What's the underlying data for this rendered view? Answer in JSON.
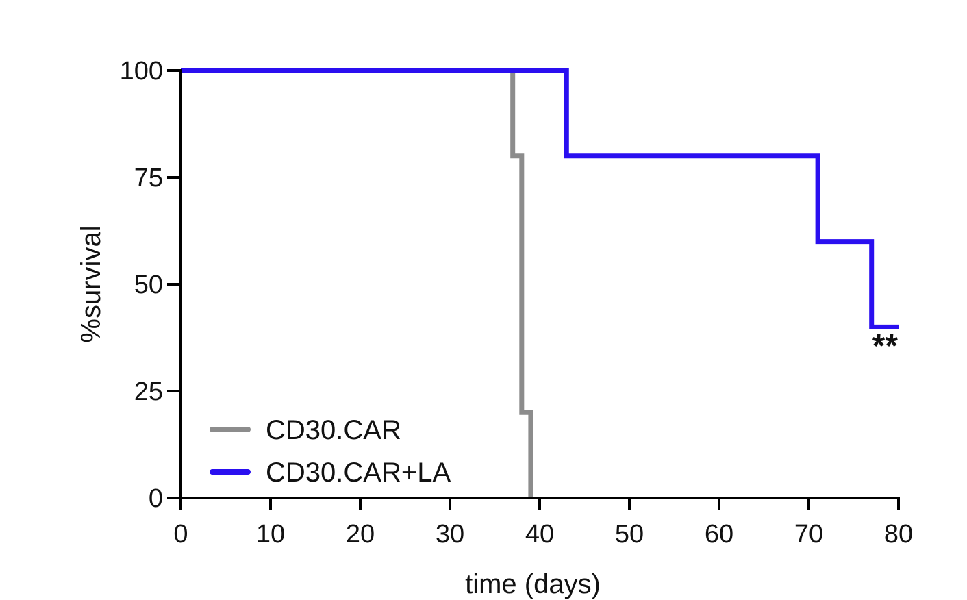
{
  "chart_data": {
    "type": "line",
    "step": true,
    "title": "",
    "xlabel": "time (days)",
    "ylabel": "%survival",
    "xlim": [
      0,
      80
    ],
    "ylim": [
      0,
      100
    ],
    "xticks": [
      0,
      10,
      20,
      30,
      40,
      50,
      60,
      70,
      80
    ],
    "yticks": [
      0,
      25,
      50,
      75,
      100
    ],
    "grid": false,
    "legend_position": "bottom-left",
    "series": [
      {
        "name": "CD30.CAR",
        "color": "#8c8c8c",
        "points": [
          [
            0,
            100
          ],
          [
            37,
            100
          ],
          [
            37,
            80
          ],
          [
            38,
            80
          ],
          [
            38,
            20
          ],
          [
            39,
            20
          ],
          [
            39,
            0
          ]
        ]
      },
      {
        "name": "CD30.CAR+LA",
        "color": "#2a0ff0",
        "points": [
          [
            0,
            100
          ],
          [
            43,
            100
          ],
          [
            43,
            80
          ],
          [
            71,
            80
          ],
          [
            71,
            60
          ],
          [
            77,
            60
          ],
          [
            77,
            40
          ],
          [
            80,
            40
          ]
        ]
      }
    ],
    "annotations": [
      {
        "text": "**",
        "x": 78.5,
        "y": 33
      }
    ]
  }
}
